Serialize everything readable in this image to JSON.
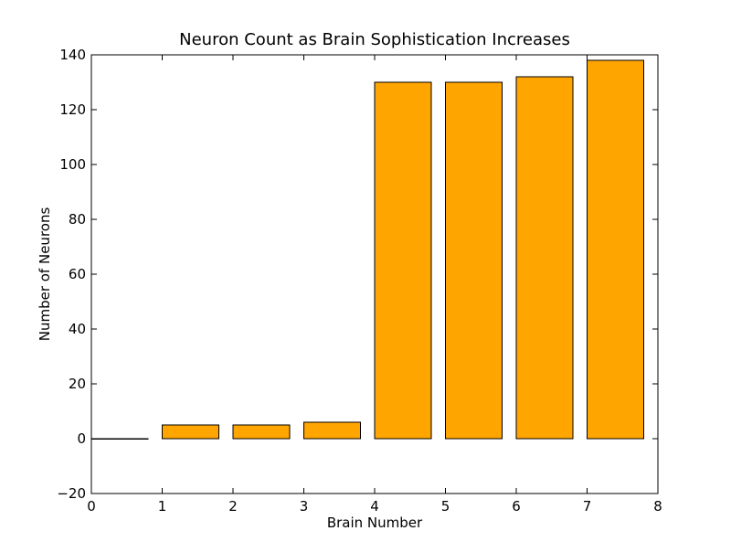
{
  "chart_data": {
    "type": "bar",
    "title": "Neuron Count as Brain Sophistication Increases",
    "xlabel": "Brain Number",
    "ylabel": "Number of Neurons",
    "x": [
      0,
      1,
      2,
      3,
      4,
      5,
      6,
      7
    ],
    "values": [
      0,
      5,
      5,
      6,
      130,
      130,
      132,
      138
    ],
    "bar_width": 0.8,
    "bar_align": "left-edge",
    "xlim": [
      0,
      8
    ],
    "ylim": [
      -20,
      140
    ],
    "xticks": [
      0,
      1,
      2,
      3,
      4,
      5,
      6,
      7,
      8
    ],
    "yticks": [
      -20,
      0,
      20,
      40,
      60,
      80,
      100,
      120,
      140
    ],
    "xtick_labels": [
      "0",
      "1",
      "2",
      "3",
      "4",
      "5",
      "6",
      "7",
      "8"
    ],
    "ytick_labels": [
      "−20",
      "0",
      "20",
      "40",
      "60",
      "80",
      "100",
      "120",
      "140"
    ],
    "grid": false,
    "legend": false,
    "colors": {
      "bar_fill": "#FFA500",
      "bar_edge": "#000000",
      "axes_edge": "#000000",
      "background": "#ffffff"
    }
  }
}
